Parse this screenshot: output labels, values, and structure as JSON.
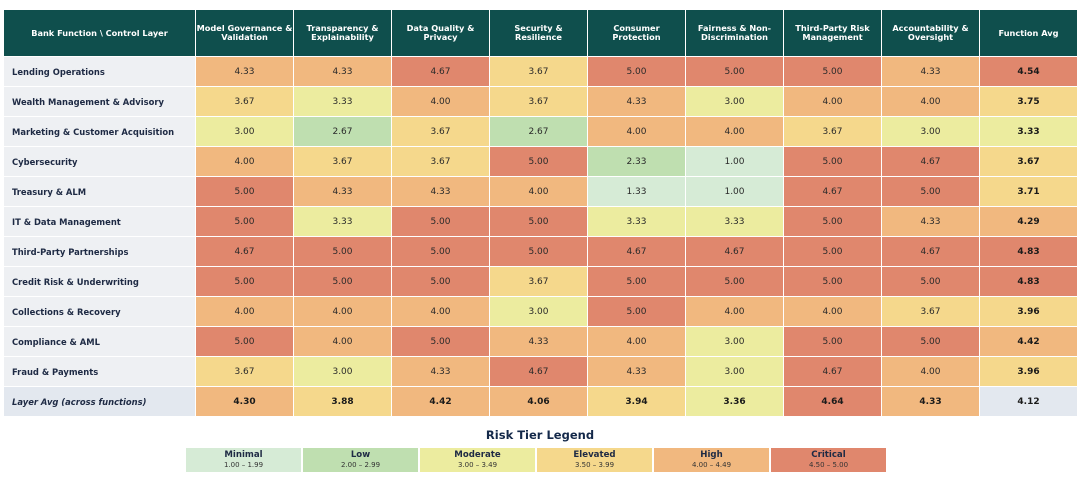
{
  "chart_data": {
    "type": "heatmap",
    "corner_label": "Bank Function \\ Control Layer",
    "columns": [
      "Model Governance & Validation",
      "Transparency & Explainability",
      "Data Quality & Privacy",
      "Security & Resilience",
      "Consumer Protection",
      "Fairness & Non-Discrimination",
      "Third-Party Risk Management",
      "Accountability & Oversight"
    ],
    "avg_column_label": "Function Avg",
    "rows": [
      {
        "name": "Lending Operations",
        "values": [
          4.33,
          4.33,
          4.67,
          3.67,
          5.0,
          5.0,
          5.0,
          4.33
        ],
        "avg": 4.54
      },
      {
        "name": "Wealth Management & Advisory",
        "values": [
          3.67,
          3.33,
          4.0,
          3.67,
          4.33,
          3.0,
          4.0,
          4.0
        ],
        "avg": 3.75
      },
      {
        "name": "Marketing & Customer Acquisition",
        "values": [
          3.0,
          2.67,
          3.67,
          2.67,
          4.0,
          4.0,
          3.67,
          3.0
        ],
        "avg": 3.33
      },
      {
        "name": "Cybersecurity",
        "values": [
          4.0,
          3.67,
          3.67,
          5.0,
          2.33,
          1.0,
          5.0,
          4.67
        ],
        "avg": 3.67
      },
      {
        "name": "Treasury & ALM",
        "values": [
          5.0,
          4.33,
          4.33,
          4.0,
          1.33,
          1.0,
          4.67,
          5.0
        ],
        "avg": 3.71
      },
      {
        "name": "IT & Data Management",
        "values": [
          5.0,
          3.33,
          5.0,
          5.0,
          3.33,
          3.33,
          5.0,
          4.33
        ],
        "avg": 4.29
      },
      {
        "name": "Third-Party Partnerships",
        "values": [
          4.67,
          5.0,
          5.0,
          5.0,
          4.67,
          4.67,
          5.0,
          4.67
        ],
        "avg": 4.83
      },
      {
        "name": "Credit Risk & Underwriting",
        "values": [
          5.0,
          5.0,
          5.0,
          3.67,
          5.0,
          5.0,
          5.0,
          5.0
        ],
        "avg": 4.83
      },
      {
        "name": "Collections & Recovery",
        "values": [
          4.0,
          4.0,
          4.0,
          3.0,
          5.0,
          4.0,
          4.0,
          3.67
        ],
        "avg": 3.96
      },
      {
        "name": "Compliance & AML",
        "values": [
          5.0,
          4.0,
          5.0,
          4.33,
          4.0,
          3.0,
          5.0,
          5.0
        ],
        "avg": 4.42
      },
      {
        "name": "Fraud & Payments",
        "values": [
          3.67,
          3.0,
          4.33,
          4.67,
          4.33,
          3.0,
          4.67,
          4.0
        ],
        "avg": 3.96
      }
    ],
    "layer_avg": {
      "label": "Layer Avg (across functions)",
      "values": [
        4.3,
        3.88,
        4.42,
        4.06,
        3.94,
        3.36,
        4.64,
        4.33
      ],
      "overall": 4.12
    },
    "legend": {
      "title": "Risk Tier Legend",
      "tiers": [
        {
          "name": "Minimal",
          "range": "1.00 – 1.99",
          "min": 1.0,
          "color": "#d6ebd6"
        },
        {
          "name": "Low",
          "range": "2.00 – 2.99",
          "min": 2.0,
          "color": "#bfdfb0"
        },
        {
          "name": "Moderate",
          "range": "3.00 – 3.49",
          "min": 3.0,
          "color": "#ecec9f"
        },
        {
          "name": "Elevated",
          "range": "3.50 – 3.99",
          "min": 3.5,
          "color": "#f5d88c"
        },
        {
          "name": "High",
          "range": "4.00 – 4.49",
          "min": 4.0,
          "color": "#f1b87f"
        },
        {
          "name": "Critical",
          "range": "4.50 – 5.00",
          "min": 4.5,
          "color": "#e0876d"
        }
      ]
    },
    "header_color": "#0f4f4d",
    "overall_cell_color": "#e3e8ef"
  }
}
